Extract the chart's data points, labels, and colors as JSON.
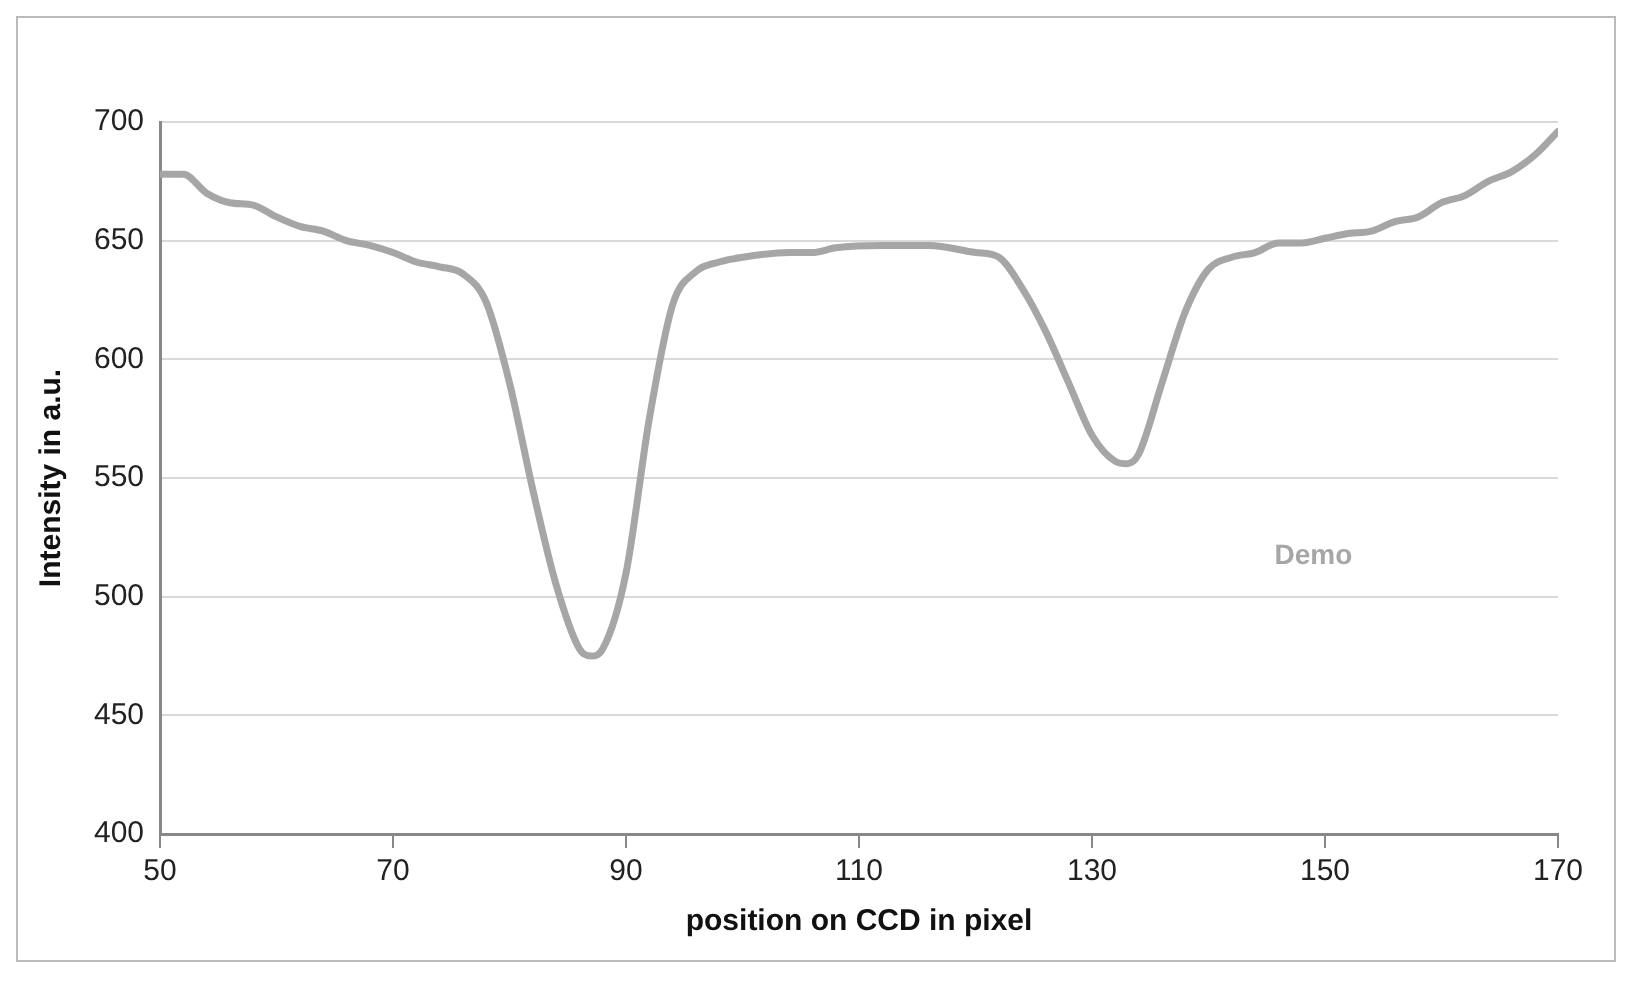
{
  "chart_data": {
    "type": "line",
    "xlabel": "position on CCD in pixel",
    "ylabel": "Intensity in a.u.",
    "xlim": [
      50,
      170
    ],
    "xticks": [
      50,
      70,
      90,
      110,
      130,
      150,
      170
    ],
    "ylim": [
      400,
      700
    ],
    "yticks": [
      400,
      450,
      500,
      550,
      600,
      650,
      700
    ],
    "grid": "y",
    "marker": "none",
    "line_style": "solid",
    "x": [
      50,
      52,
      54,
      56,
      58,
      60,
      62,
      64,
      66,
      68,
      70,
      72,
      74,
      76,
      78,
      80,
      82,
      84,
      86,
      87,
      88,
      90,
      92,
      94,
      96,
      98,
      100,
      104,
      106,
      108,
      112,
      116,
      120,
      122,
      124,
      126,
      128,
      130,
      132,
      133,
      134,
      136,
      138,
      140,
      142,
      144,
      146,
      148,
      150,
      152,
      154,
      156,
      158,
      160,
      162,
      164,
      166,
      168,
      170
    ],
    "series": [
      {
        "name": "Demo",
        "color": "#a6a6a6",
        "values": [
          678,
          678,
          670,
          666,
          665,
          660,
          656,
          654,
          650,
          648,
          645,
          641,
          639,
          636,
          624,
          590,
          545,
          505,
          478,
          475,
          478,
          510,
          575,
          623,
          637,
          641,
          643,
          645,
          645,
          647,
          648,
          648,
          645,
          643,
          630,
          612,
          590,
          568,
          557,
          556,
          560,
          590,
          620,
          638,
          643,
          645,
          649,
          649,
          651,
          653,
          654,
          658,
          660,
          666,
          669,
          675,
          679,
          686,
          696
        ]
      }
    ]
  }
}
